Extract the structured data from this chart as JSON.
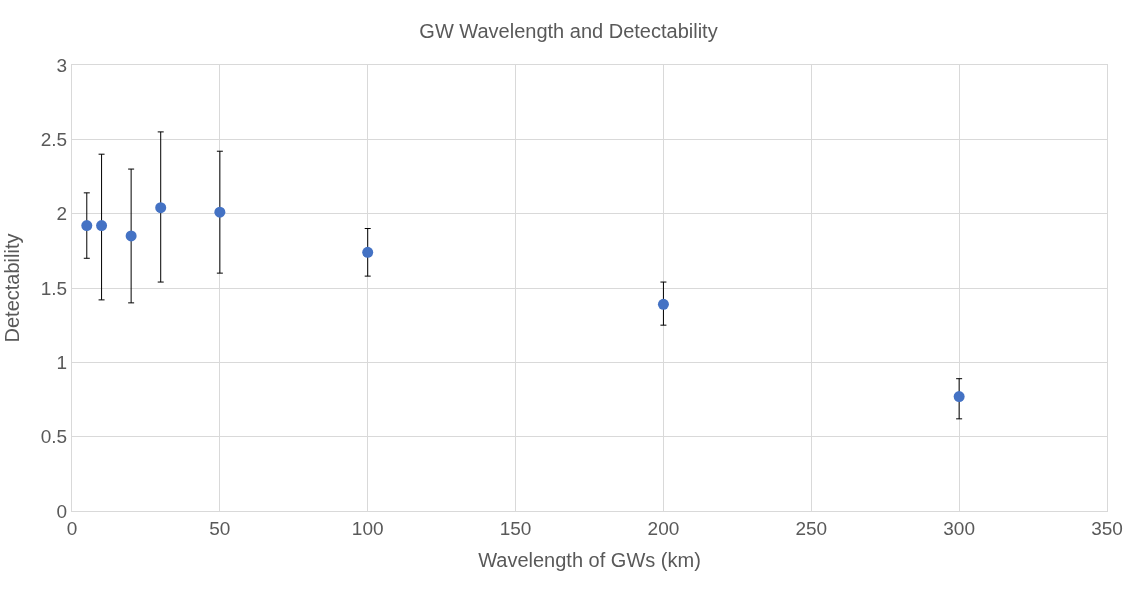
{
  "chart_data": {
    "type": "scatter",
    "title": "GW Wavelength and Detectability",
    "xlabel": "Wavelength of GWs (km)",
    "ylabel": "Detectability",
    "x": [
      5,
      10,
      20,
      30,
      50,
      100,
      200,
      300
    ],
    "series": [
      {
        "color": "#4472c4",
        "values": [
          1.92,
          1.92,
          1.85,
          2.04,
          2.01,
          1.74,
          1.39,
          0.77
        ],
        "errors": [
          [
            1.7,
            2.14
          ],
          [
            1.42,
            2.4
          ],
          [
            1.4,
            2.3
          ],
          [
            1.54,
            2.55
          ],
          [
            1.6,
            2.42
          ],
          [
            1.58,
            1.9
          ],
          [
            1.25,
            1.54
          ],
          [
            0.62,
            0.89
          ]
        ]
      }
    ],
    "xlim": [
      0,
      350
    ],
    "xticks": [
      0,
      50,
      100,
      150,
      200,
      250,
      300,
      350
    ],
    "ylim": [
      0,
      3
    ],
    "yticks": [
      0,
      0.5,
      1,
      1.5,
      2,
      2.5,
      3
    ],
    "grid": true,
    "marker": "circle"
  }
}
